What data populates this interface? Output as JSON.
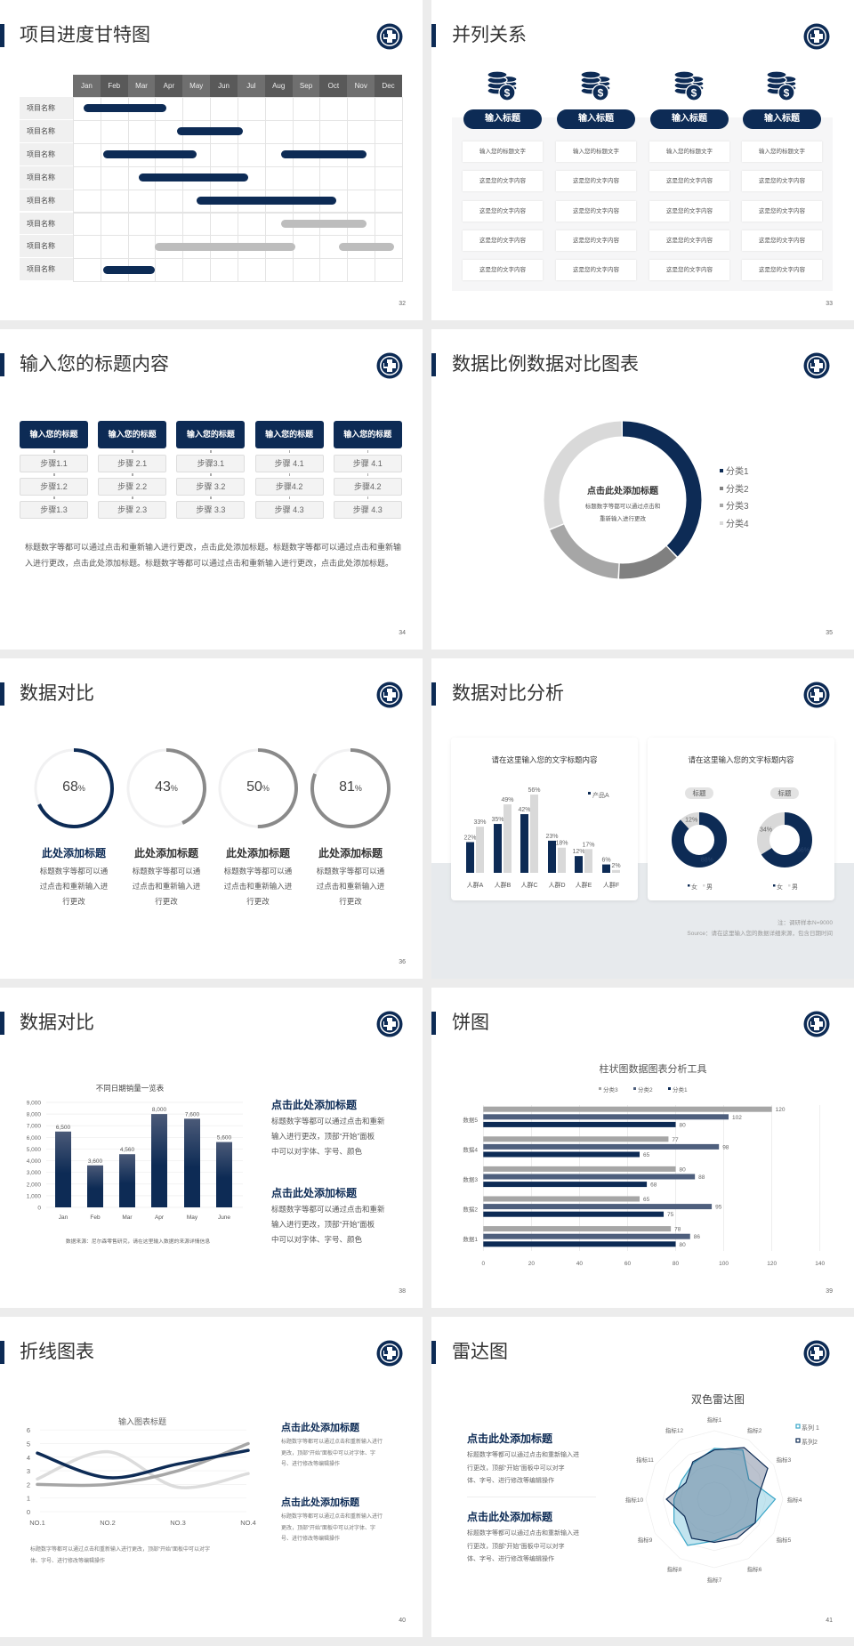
{
  "theme": {
    "primary": "#0d2b55",
    "gray_dark": "#808080",
    "gray_mid": "#a6a6a6",
    "gray_light": "#d9d9d9",
    "cyan": "#3aa6c8"
  },
  "slides": [
    {
      "title": "项目进度甘特图",
      "page": "32",
      "gantt": {
        "months": [
          "Jan",
          "Feb",
          "Mar",
          "Apr",
          "May",
          "Jun",
          "Jul",
          "Aug",
          "Sep",
          "Oct",
          "Nov",
          "Dec"
        ],
        "rows": [
          {
            "label": "项目名称",
            "bars": [
              {
                "start": 0.4,
                "end": 3.4,
                "tone": "primary"
              }
            ]
          },
          {
            "label": "项目名称",
            "bars": [
              {
                "start": 3.8,
                "end": 6.2,
                "tone": "primary"
              }
            ]
          },
          {
            "label": "项目名称",
            "bars": [
              {
                "start": 1.1,
                "end": 4.5,
                "tone": "primary"
              },
              {
                "start": 7.6,
                "end": 10.7,
                "tone": "primary"
              }
            ]
          },
          {
            "label": "项目名称",
            "bars": [
              {
                "start": 2.4,
                "end": 6.4,
                "tone": "primary"
              }
            ]
          },
          {
            "label": "项目名称",
            "bars": [
              {
                "start": 4.5,
                "end": 9.6,
                "tone": "primary"
              }
            ]
          },
          {
            "label": "项目名称",
            "bars": [
              {
                "start": 7.6,
                "end": 10.7,
                "tone": "gray"
              }
            ]
          },
          {
            "label": "项目名称",
            "bars": [
              {
                "start": 3.0,
                "end": 8.1,
                "tone": "gray"
              },
              {
                "start": 9.7,
                "end": 11.7,
                "tone": "gray"
              }
            ]
          },
          {
            "label": "项目名称",
            "bars": [
              {
                "start": 1.1,
                "end": 3.0,
                "tone": "primary"
              }
            ]
          }
        ]
      }
    },
    {
      "title": "并列关系",
      "page": "33",
      "columns": [
        {
          "heading": "输入标题",
          "icon": "coins-dollar-icon",
          "items": [
            "输入您的标题文字",
            "这是您的文字内容",
            "这是您的文字内容",
            "这是您的文字内容",
            "这是您的文字内容"
          ]
        },
        {
          "heading": "输入标题",
          "icon": "coins-dollar-icon",
          "items": [
            "输入您的标题文字",
            "这是您的文字内容",
            "这是您的文字内容",
            "这是您的文字内容",
            "这是您的文字内容"
          ]
        },
        {
          "heading": "输入标题",
          "icon": "coins-dollar-icon",
          "items": [
            "输入您的标题文字",
            "这是您的文字内容",
            "这是您的文字内容",
            "这是您的文字内容",
            "这是您的文字内容"
          ]
        },
        {
          "heading": "输入标题",
          "icon": "coins-dollar-icon",
          "items": [
            "输入您的标题文字",
            "这是您的文字内容",
            "这是您的文字内容",
            "这是您的文字内容",
            "这是您的文字内容"
          ]
        }
      ]
    },
    {
      "title": "输入您的标题内容",
      "page": "34",
      "columns": [
        {
          "heading": "输入您的标题",
          "steps": [
            "步骤1.1",
            "步骤1.2",
            "步骤1.3"
          ]
        },
        {
          "heading": "输入您的标题",
          "steps": [
            "步骤 2.1",
            "步骤 2.2",
            "步骤 2.3"
          ]
        },
        {
          "heading": "输入您的标题",
          "steps": [
            "步骤3.1",
            "步骤 3.2",
            "步骤 3.3"
          ]
        },
        {
          "heading": "输入您的标题",
          "steps": [
            "步骤 4.1",
            "步骤4.2",
            "步骤 4.3"
          ]
        },
        {
          "heading": "输入您的标题",
          "steps": [
            "步骤 4.1",
            "步骤4.2",
            "步骤 4.3"
          ]
        }
      ],
      "paragraph": "标题数字等都可以通过点击和重新输入进行更改，点击此处添加标题。标题数字等都可以通过点击和重新输入进行更改，点击此处添加标题。标题数字等都可以通过点击和重新输入进行更改，点击此处添加标题。"
    },
    {
      "title": "数据比例数据对比图表",
      "page": "35",
      "center_title": "点击此处添加标题",
      "center_text": [
        "标题数字等都可以通过点击和",
        "重新输入进行更改"
      ]
    },
    {
      "title": "数据对比",
      "page": "36",
      "items": [
        {
          "value": 68,
          "unit": "%",
          "heading": "此处添加标题",
          "text": [
            "标题数字等都可以通",
            "过点击和重新输入进",
            "行更改"
          ],
          "tone": "primary"
        },
        {
          "value": 43,
          "unit": "%",
          "heading": "此处添加标题",
          "text": [
            "标题数字等都可以通",
            "过点击和重新输入进",
            "行更改"
          ],
          "tone": "gray"
        },
        {
          "value": 50,
          "unit": "%",
          "heading": "此处添加标题",
          "text": [
            "标题数字等都可以通",
            "过点击和重新输入进",
            "行更改"
          ],
          "tone": "gray"
        },
        {
          "value": 81,
          "unit": "%",
          "heading": "此处添加标题",
          "text": [
            "标题数字等都可以通",
            "过点击和重新输入进",
            "行更改"
          ],
          "tone": "gray"
        }
      ]
    },
    {
      "title": "数据对比分析",
      "page": "37",
      "note": "注：调研样本N=9000",
      "source": "Source：请在这里输入您的数据详细来源，包含日期时间"
    },
    {
      "title": "数据对比",
      "page": "38",
      "source": "数据来源：尼尔森零售研究，请在这里输入数据的来源详情信息",
      "blocks": [
        {
          "heading": "点击此处添加标题",
          "lines": [
            "标题数字等都可以通过点击和重新",
            "输入进行更改，顶部“开始”面板",
            "中可以对字体、字号、颜色"
          ]
        },
        {
          "heading": "点击此处添加标题",
          "lines": [
            "标题数字等都可以通过点击和重新",
            "输入进行更改，顶部“开始”面板",
            "中可以对字体、字号、颜色"
          ]
        }
      ]
    },
    {
      "title": "饼图",
      "page": "39"
    },
    {
      "title": "折线图表",
      "page": "40",
      "caption": [
        "标题数字等都可以通过点击和重新输入进行更改，顶部“开始”面板中可以对字",
        "体、字号、进行修改等编辑操作"
      ],
      "blocks": [
        {
          "heading": "点击此处添加标题",
          "lines": [
            "标题数字等都可以通过点击和重新输入进行",
            "更改，顶部“开始”面板中可以对字体、字",
            "号、进行修改等编辑操作"
          ]
        },
        {
          "heading": "点击此处添加标题",
          "lines": [
            "标题数字等都可以通过点击和重新输入进行",
            "更改，顶部“开始”面板中可以对字体、字",
            "号、进行修改等编辑操作"
          ]
        }
      ]
    },
    {
      "title": "雷达图",
      "page": "41",
      "blocks": [
        {
          "heading": "点击此处添加标题",
          "lines": [
            "标题数字等都可以通过点击和重新输入进",
            "行更改，顶部“开始”面板中可以对字",
            "体、字号、进行修改等编辑操作"
          ]
        },
        {
          "heading": "点击此处添加标题",
          "lines": [
            "标题数字等都可以通过点击和重新输入进",
            "行更改，顶部“开始”面板中可以对字",
            "体、字号、进行修改等编辑操作"
          ]
        }
      ]
    }
  ],
  "chart_data": [
    {
      "type": "pie",
      "variant": "donut",
      "categories": [
        "分类1",
        "分类2",
        "分类3",
        "分类4"
      ],
      "values": [
        38,
        13,
        18,
        31
      ],
      "legend": "right"
    },
    {
      "type": "bar",
      "title": "请在这里输入您的文字标题内容",
      "categories": [
        "人群A",
        "人群B",
        "人群C",
        "人群D",
        "人群E",
        "人群F"
      ],
      "series": [
        {
          "name": "产品A",
          "values": [
            22,
            35,
            42,
            23,
            12,
            6
          ]
        },
        {
          "values": [
            33,
            49,
            56,
            18,
            17,
            2
          ]
        }
      ],
      "unit": "%",
      "legend": "top-right"
    },
    {
      "type": "pie",
      "variant": "donut",
      "title": "标题",
      "categories": [
        "女",
        "男"
      ],
      "values": [
        88,
        12
      ],
      "unit": "%",
      "legend": "bottom"
    },
    {
      "type": "pie",
      "variant": "donut",
      "title": "标题",
      "categories": [
        "女",
        "男"
      ],
      "values": [
        66,
        34
      ],
      "unit": "%",
      "legend": "bottom"
    },
    {
      "type": "bar",
      "title": "不同日期销量一览表",
      "categories": [
        "Jan",
        "Feb",
        "Mar",
        "Apr",
        "May",
        "June"
      ],
      "values": [
        6500,
        3600,
        4560,
        8000,
        7600,
        5600
      ],
      "ylim": [
        0,
        9000
      ],
      "ystep": 1000,
      "grid": true
    },
    {
      "type": "bar",
      "orientation": "horizontal",
      "title": "柱状图数据图表分析工具",
      "categories": [
        "数据1",
        "数据2",
        "数据3",
        "数据4",
        "数据5"
      ],
      "series": [
        {
          "name": "分类3",
          "values": [
            78,
            65,
            80,
            77,
            120
          ]
        },
        {
          "name": "分类2",
          "values": [
            86,
            95,
            88,
            98,
            102
          ]
        },
        {
          "name": "分类1",
          "values": [
            80,
            75,
            68,
            65,
            80
          ]
        }
      ],
      "xlim": [
        0,
        140
      ],
      "xstep": 20,
      "grid": true,
      "legend": "top"
    },
    {
      "type": "line",
      "smooth": true,
      "title": "输入图表标题",
      "categories": [
        "NO.1",
        "NO.2",
        "NO.3",
        "NO.4"
      ],
      "series": [
        {
          "values": [
            4.3,
            2.5,
            3.5,
            4.5
          ]
        },
        {
          "values": [
            2.4,
            4.4,
            1.8,
            2.8
          ]
        },
        {
          "values": [
            2.0,
            2.0,
            3.0,
            5.0
          ]
        }
      ],
      "ylim": [
        0,
        6
      ],
      "grid": true
    },
    {
      "type": "radar",
      "title": "双色雷达图",
      "categories": [
        "指标1",
        "指标2",
        "指标3",
        "指标4",
        "指标5",
        "指标6",
        "指标7",
        "指标8",
        "指标9",
        "指标10",
        "指标11",
        "指标12"
      ],
      "series": [
        {
          "name": "系列 1",
          "values": [
            74,
            83,
            58,
            89,
            69,
            58,
            61,
            78,
            68,
            59,
            55,
            61
          ]
        },
        {
          "name": "系列2",
          "values": [
            72,
            87,
            90,
            63,
            69,
            66,
            63,
            66,
            50,
            70,
            48,
            63
          ]
        }
      ],
      "rlim": [
        0,
        100
      ],
      "legend": "top-right"
    }
  ]
}
